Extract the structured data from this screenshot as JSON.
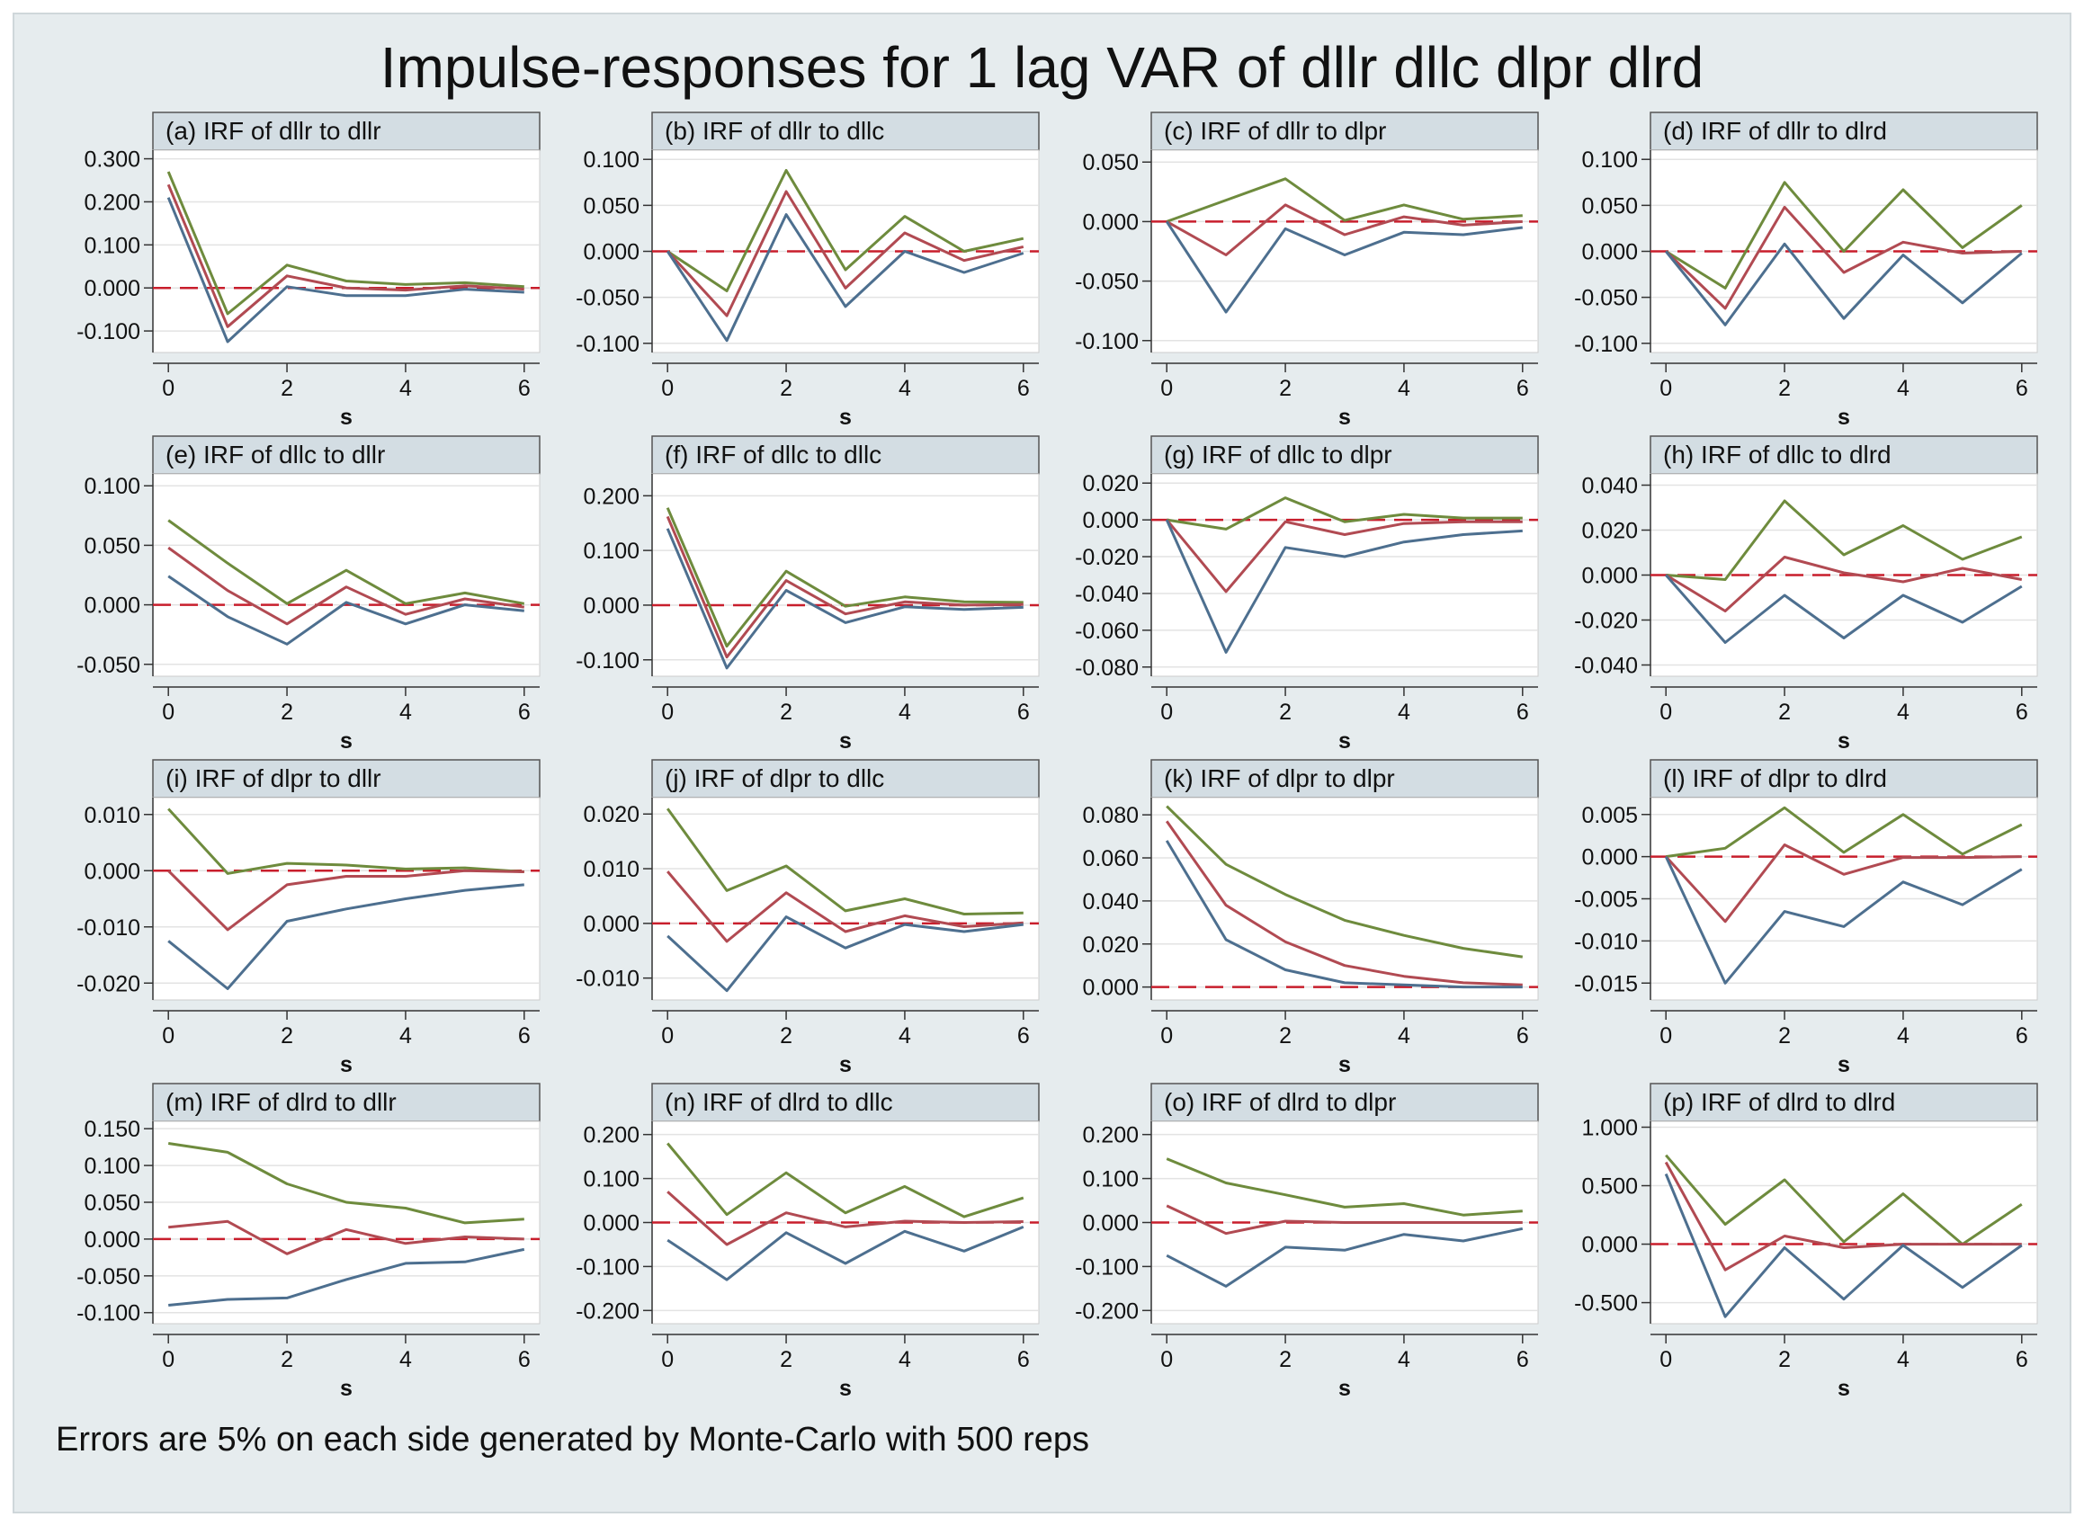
{
  "title": "Impulse-responses for 1 lag VAR of dllr dllc dlpr dlrd",
  "footnote": "Errors are 5% on each side generated by Monte-Carlo with 500 reps",
  "colors": {
    "upper": "#6e8b3d",
    "irf": "#b14a52",
    "lower": "#4d6f8f",
    "zero": "#c81e2c",
    "panel_header": "#d3dde3",
    "grid": "#e3e3e3"
  },
  "chart_data": [
    {
      "id": "a",
      "type": "line",
      "title": "(a)   IRF of dllr to dllr",
      "xlabel": "s",
      "x": [
        0,
        1,
        2,
        3,
        4,
        5,
        6
      ],
      "xticks": [
        0,
        2,
        4,
        6
      ],
      "ylim": [
        -0.15,
        0.32
      ],
      "yticks": [
        -0.1,
        0,
        0.1,
        0.2,
        0.3
      ],
      "decimals": 3,
      "series": [
        {
          "name": "upper",
          "values": [
            0.27,
            -0.06,
            0.053,
            0.016,
            0.008,
            0.012,
            0.003
          ]
        },
        {
          "name": "irf",
          "values": [
            0.24,
            -0.09,
            0.028,
            0.0,
            -0.005,
            0.005,
            -0.003
          ]
        },
        {
          "name": "lower",
          "values": [
            0.21,
            -0.125,
            0.003,
            -0.018,
            -0.018,
            -0.003,
            -0.01
          ]
        }
      ]
    },
    {
      "id": "b",
      "type": "line",
      "title": "(b)   IRF of dllr to dllc",
      "xlabel": "s",
      "x": [
        0,
        1,
        2,
        3,
        4,
        5,
        6
      ],
      "xticks": [
        0,
        2,
        4,
        6
      ],
      "ylim": [
        -0.11,
        0.11
      ],
      "yticks": [
        -0.1,
        -0.05,
        0,
        0.05,
        0.1
      ],
      "decimals": 3,
      "series": [
        {
          "name": "upper",
          "values": [
            0.0,
            -0.043,
            0.088,
            -0.02,
            0.038,
            0.0,
            0.014
          ]
        },
        {
          "name": "irf",
          "values": [
            0.0,
            -0.07,
            0.065,
            -0.04,
            0.02,
            -0.01,
            0.005
          ]
        },
        {
          "name": "lower",
          "values": [
            0.0,
            -0.097,
            0.04,
            -0.06,
            0.0,
            -0.023,
            -0.002
          ]
        }
      ]
    },
    {
      "id": "c",
      "type": "line",
      "title": "(c)   IRF of dllr to dlpr",
      "xlabel": "s",
      "x": [
        0,
        1,
        2,
        3,
        4,
        5,
        6
      ],
      "xticks": [
        0,
        2,
        4,
        6
      ],
      "ylim": [
        -0.11,
        0.06
      ],
      "yticks": [
        -0.1,
        -0.05,
        0,
        0.05
      ],
      "decimals": 3,
      "series": [
        {
          "name": "upper",
          "values": [
            0.0,
            0.018,
            0.036,
            0.001,
            0.014,
            0.002,
            0.005
          ]
        },
        {
          "name": "irf",
          "values": [
            0.0,
            -0.028,
            0.014,
            -0.011,
            0.004,
            -0.003,
            0.0
          ]
        },
        {
          "name": "lower",
          "values": [
            0.0,
            -0.076,
            -0.006,
            -0.028,
            -0.009,
            -0.011,
            -0.005
          ]
        }
      ]
    },
    {
      "id": "d",
      "type": "line",
      "title": "(d)   IRF of dllr to dlrd",
      "xlabel": "s",
      "x": [
        0,
        1,
        2,
        3,
        4,
        5,
        6
      ],
      "xticks": [
        0,
        2,
        4,
        6
      ],
      "ylim": [
        -0.11,
        0.11
      ],
      "yticks": [
        -0.1,
        -0.05,
        0,
        0.05,
        0.1
      ],
      "decimals": 3,
      "series": [
        {
          "name": "upper",
          "values": [
            0.0,
            -0.04,
            0.075,
            0.0,
            0.067,
            0.004,
            0.05
          ]
        },
        {
          "name": "irf",
          "values": [
            0.0,
            -0.062,
            0.048,
            -0.023,
            0.01,
            -0.002,
            0.0
          ]
        },
        {
          "name": "lower",
          "values": [
            0.0,
            -0.08,
            0.008,
            -0.073,
            -0.004,
            -0.056,
            -0.002
          ]
        }
      ]
    },
    {
      "id": "e",
      "type": "line",
      "title": "(e)   IRF of dllc to dllr",
      "xlabel": "s",
      "x": [
        0,
        1,
        2,
        3,
        4,
        5,
        6
      ],
      "xticks": [
        0,
        2,
        4,
        6
      ],
      "ylim": [
        -0.06,
        0.11
      ],
      "yticks": [
        -0.05,
        0,
        0.05,
        0.1
      ],
      "decimals": 3,
      "series": [
        {
          "name": "upper",
          "values": [
            0.071,
            0.035,
            0.001,
            0.029,
            0.001,
            0.01,
            0.001
          ]
        },
        {
          "name": "irf",
          "values": [
            0.048,
            0.012,
            -0.016,
            0.015,
            -0.008,
            0.005,
            -0.002
          ]
        },
        {
          "name": "lower",
          "values": [
            0.024,
            -0.01,
            -0.033,
            0.002,
            -0.016,
            0.0,
            -0.005
          ]
        }
      ]
    },
    {
      "id": "f",
      "type": "line",
      "title": "(f)   IRF of dllc to dllc",
      "xlabel": "s",
      "x": [
        0,
        1,
        2,
        3,
        4,
        5,
        6
      ],
      "xticks": [
        0,
        2,
        4,
        6
      ],
      "ylim": [
        -0.13,
        0.24
      ],
      "yticks": [
        -0.1,
        0,
        0.1,
        0.2
      ],
      "decimals": 3,
      "series": [
        {
          "name": "upper",
          "values": [
            0.178,
            -0.075,
            0.062,
            -0.002,
            0.015,
            0.006,
            0.005
          ]
        },
        {
          "name": "irf",
          "values": [
            0.162,
            -0.095,
            0.045,
            -0.016,
            0.006,
            0.0,
            0.001
          ]
        },
        {
          "name": "lower",
          "values": [
            0.14,
            -0.115,
            0.027,
            -0.032,
            -0.003,
            -0.008,
            -0.004
          ]
        }
      ]
    },
    {
      "id": "g",
      "type": "line",
      "title": "(g)   IRF of dllc to dlpr",
      "xlabel": "s",
      "x": [
        0,
        1,
        2,
        3,
        4,
        5,
        6
      ],
      "xticks": [
        0,
        2,
        4,
        6
      ],
      "ylim": [
        -0.085,
        0.025
      ],
      "yticks": [
        -0.08,
        -0.06,
        -0.04,
        -0.02,
        0,
        0.02
      ],
      "decimals": 3,
      "series": [
        {
          "name": "upper",
          "values": [
            0.0,
            -0.005,
            0.012,
            -0.001,
            0.003,
            0.001,
            0.001
          ]
        },
        {
          "name": "irf",
          "values": [
            0.0,
            -0.039,
            -0.001,
            -0.008,
            -0.002,
            -0.001,
            -0.001
          ]
        },
        {
          "name": "lower",
          "values": [
            0.0,
            -0.072,
            -0.015,
            -0.02,
            -0.012,
            -0.008,
            -0.006
          ]
        }
      ]
    },
    {
      "id": "h",
      "type": "line",
      "title": "(h)   IRF of dllc to dlrd",
      "xlabel": "s",
      "x": [
        0,
        1,
        2,
        3,
        4,
        5,
        6
      ],
      "xticks": [
        0,
        2,
        4,
        6
      ],
      "ylim": [
        -0.045,
        0.045
      ],
      "yticks": [
        -0.04,
        -0.02,
        0,
        0.02,
        0.04
      ],
      "decimals": 3,
      "series": [
        {
          "name": "upper",
          "values": [
            0.0,
            -0.002,
            0.033,
            0.009,
            0.022,
            0.007,
            0.017
          ]
        },
        {
          "name": "irf",
          "values": [
            0.0,
            -0.016,
            0.008,
            0.001,
            -0.003,
            0.003,
            -0.002
          ]
        },
        {
          "name": "lower",
          "values": [
            0.0,
            -0.03,
            -0.009,
            -0.028,
            -0.009,
            -0.021,
            -0.005
          ]
        }
      ]
    },
    {
      "id": "i",
      "type": "line",
      "title": "(i)   IRF of dlpr to dllr",
      "xlabel": "s",
      "x": [
        0,
        1,
        2,
        3,
        4,
        5,
        6
      ],
      "xticks": [
        0,
        2,
        4,
        6
      ],
      "ylim": [
        -0.023,
        0.013
      ],
      "yticks": [
        -0.02,
        -0.01,
        0,
        0.01
      ],
      "decimals": 3,
      "series": [
        {
          "name": "upper",
          "values": [
            0.011,
            -0.0005,
            0.0013,
            0.001,
            0.0003,
            0.0005,
            -0.0002
          ]
        },
        {
          "name": "irf",
          "values": [
            0.0,
            -0.0105,
            -0.0025,
            -0.001,
            -0.001,
            0.0,
            -0.0002
          ]
        },
        {
          "name": "lower",
          "values": [
            -0.0125,
            -0.021,
            -0.009,
            -0.0068,
            -0.005,
            -0.0035,
            -0.0025
          ]
        }
      ]
    },
    {
      "id": "j",
      "type": "line",
      "title": "(j)   IRF of dlpr to dllc",
      "xlabel": "s",
      "x": [
        0,
        1,
        2,
        3,
        4,
        5,
        6
      ],
      "xticks": [
        0,
        2,
        4,
        6
      ],
      "ylim": [
        -0.014,
        0.023
      ],
      "yticks": [
        -0.01,
        0,
        0.01,
        0.02
      ],
      "decimals": 3,
      "series": [
        {
          "name": "upper",
          "values": [
            0.021,
            0.006,
            0.0105,
            0.0023,
            0.0045,
            0.0017,
            0.0019
          ]
        },
        {
          "name": "irf",
          "values": [
            0.0095,
            -0.0033,
            0.0056,
            -0.0015,
            0.0014,
            -0.0006,
            0.0001
          ]
        },
        {
          "name": "lower",
          "values": [
            -0.0023,
            -0.0123,
            0.0012,
            -0.0045,
            -0.0002,
            -0.0015,
            -0.0002
          ]
        }
      ]
    },
    {
      "id": "k",
      "type": "line",
      "title": "(k)   IRF of dlpr to dlpr",
      "xlabel": "s",
      "x": [
        0,
        1,
        2,
        3,
        4,
        5,
        6
      ],
      "xticks": [
        0,
        2,
        4,
        6
      ],
      "ylim": [
        -0.006,
        0.088
      ],
      "yticks": [
        0,
        0.02,
        0.04,
        0.06,
        0.08
      ],
      "decimals": 3,
      "series": [
        {
          "name": "upper",
          "values": [
            0.084,
            0.057,
            0.043,
            0.031,
            0.024,
            0.018,
            0.014
          ]
        },
        {
          "name": "irf",
          "values": [
            0.077,
            0.038,
            0.021,
            0.01,
            0.005,
            0.002,
            0.001
          ]
        },
        {
          "name": "lower",
          "values": [
            0.068,
            0.022,
            0.008,
            0.002,
            0.001,
            0.0,
            0.0
          ]
        }
      ]
    },
    {
      "id": "l",
      "type": "line",
      "title": "(l)   IRF of dlpr to dlrd",
      "xlabel": "s",
      "x": [
        0,
        1,
        2,
        3,
        4,
        5,
        6
      ],
      "xticks": [
        0,
        2,
        4,
        6
      ],
      "ylim": [
        -0.017,
        0.007
      ],
      "yticks": [
        -0.015,
        -0.01,
        -0.005,
        0,
        0.005
      ],
      "decimals": 3,
      "series": [
        {
          "name": "upper",
          "values": [
            0.0,
            0.001,
            0.0058,
            0.0005,
            0.005,
            0.0003,
            0.0038
          ]
        },
        {
          "name": "irf",
          "values": [
            0.0,
            -0.0077,
            0.0014,
            -0.0021,
            -0.0001,
            -0.0001,
            0.0
          ]
        },
        {
          "name": "lower",
          "values": [
            0.0,
            -0.015,
            -0.0065,
            -0.0083,
            -0.003,
            -0.0057,
            -0.0015
          ]
        }
      ]
    },
    {
      "id": "m",
      "type": "line",
      "title": "(m)   IRF of dlrd to dllr",
      "xlabel": "s",
      "x": [
        0,
        1,
        2,
        3,
        4,
        5,
        6
      ],
      "xticks": [
        0,
        2,
        4,
        6
      ],
      "ylim": [
        -0.115,
        0.16
      ],
      "yticks": [
        -0.1,
        -0.05,
        0,
        0.05,
        0.1,
        0.15
      ],
      "decimals": 3,
      "series": [
        {
          "name": "upper",
          "values": [
            0.13,
            0.118,
            0.075,
            0.05,
            0.042,
            0.022,
            0.027
          ]
        },
        {
          "name": "irf",
          "values": [
            0.016,
            0.024,
            -0.02,
            0.013,
            -0.006,
            0.003,
            0.0
          ]
        },
        {
          "name": "lower",
          "values": [
            -0.09,
            -0.082,
            -0.08,
            -0.055,
            -0.033,
            -0.031,
            -0.014
          ]
        }
      ]
    },
    {
      "id": "n",
      "type": "line",
      "title": "(n)   IRF of dlrd to dllc",
      "xlabel": "s",
      "x": [
        0,
        1,
        2,
        3,
        4,
        5,
        6
      ],
      "xticks": [
        0,
        2,
        4,
        6
      ],
      "ylim": [
        -0.23,
        0.23
      ],
      "yticks": [
        -0.2,
        -0.1,
        0,
        0.1,
        0.2
      ],
      "decimals": 3,
      "series": [
        {
          "name": "upper",
          "values": [
            0.18,
            0.018,
            0.113,
            0.022,
            0.082,
            0.013,
            0.056
          ]
        },
        {
          "name": "irf",
          "values": [
            0.07,
            -0.05,
            0.022,
            -0.01,
            0.003,
            0.0,
            0.002
          ]
        },
        {
          "name": "lower",
          "values": [
            -0.04,
            -0.13,
            -0.023,
            -0.093,
            -0.02,
            -0.065,
            -0.01
          ]
        }
      ]
    },
    {
      "id": "o",
      "type": "line",
      "title": "(o)   IRF of dlrd to dlpr",
      "xlabel": "s",
      "x": [
        0,
        1,
        2,
        3,
        4,
        5,
        6
      ],
      "xticks": [
        0,
        2,
        4,
        6
      ],
      "ylim": [
        -0.23,
        0.23
      ],
      "yticks": [
        -0.2,
        -0.1,
        0,
        0.1,
        0.2
      ],
      "decimals": 3,
      "series": [
        {
          "name": "upper",
          "values": [
            0.145,
            0.09,
            0.063,
            0.035,
            0.043,
            0.017,
            0.026
          ]
        },
        {
          "name": "irf",
          "values": [
            0.038,
            -0.025,
            0.003,
            0.0,
            0.0,
            0.0,
            0.0
          ]
        },
        {
          "name": "lower",
          "values": [
            -0.075,
            -0.145,
            -0.056,
            -0.063,
            -0.027,
            -0.042,
            -0.014
          ]
        }
      ]
    },
    {
      "id": "p",
      "type": "line",
      "title": "(p)   IRF of dlrd to dlrd",
      "xlabel": "s",
      "x": [
        0,
        1,
        2,
        3,
        4,
        5,
        6
      ],
      "xticks": [
        0,
        2,
        4,
        6
      ],
      "ylim": [
        -0.68,
        1.05
      ],
      "yticks": [
        -0.5,
        0,
        0.5,
        1
      ],
      "decimals": 3,
      "series": [
        {
          "name": "upper",
          "values": [
            0.76,
            0.17,
            0.55,
            0.02,
            0.43,
            0.0,
            0.34
          ]
        },
        {
          "name": "irf",
          "values": [
            0.7,
            -0.22,
            0.07,
            -0.03,
            0.0,
            0.0,
            0.0
          ]
        },
        {
          "name": "lower",
          "values": [
            0.6,
            -0.62,
            -0.03,
            -0.47,
            -0.01,
            -0.37,
            -0.01
          ]
        }
      ]
    }
  ]
}
